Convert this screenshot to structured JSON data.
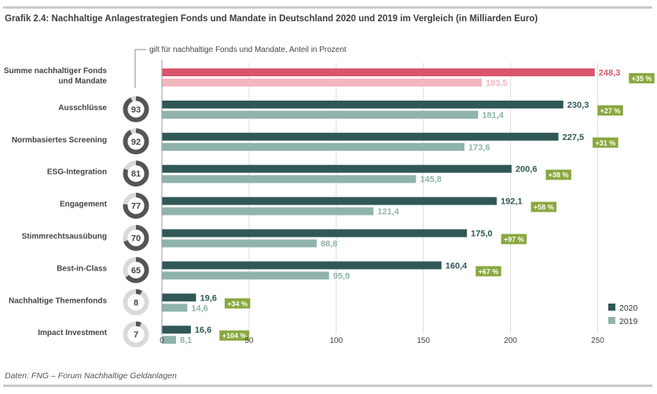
{
  "title": "Grafik 2.4: Nachhaltige Anlagestrategien Fonds und Mandate in Deutschland 2020 und 2019 im Vergleich (in Milliarden Euro)",
  "source": "Daten: FNG – Forum Nachhaltige Geldanlagen",
  "colors": {
    "series_2020": "#2f5856",
    "series_2019": "#8fb3ab",
    "total_2020": "#d9566b",
    "total_2019": "#f3b7bf",
    "growth_badge": "#8aa83f",
    "donut_fill": "#555555",
    "donut_track": "#d9d9d9"
  },
  "chart_data": {
    "type": "bar",
    "orientation": "horizontal",
    "categories": [
      "Summe nachhaltiger Fonds und Mandate",
      "Ausschlüsse",
      "Normbasiertes Screening",
      "ESG-Integration",
      "Engagement",
      "Stimmrechtsausübung",
      "Best-in-Class",
      "Nachhaltige Themenfonds",
      "Impact Investment"
    ],
    "category_lines": [
      [
        "Summe nachhaltiger Fonds",
        "und Mandate"
      ],
      [
        "Ausschlüsse"
      ],
      [
        "Normbasiertes Screening"
      ],
      [
        "ESG-Integration"
      ],
      [
        "Engagement"
      ],
      [
        "Stimmrechtsausübung"
      ],
      [
        "Best-in-Class"
      ],
      [
        "Nachhaltige Themenfonds"
      ],
      [
        "Impact Investment"
      ]
    ],
    "series": [
      {
        "name": "2020",
        "values": [
          248.3,
          230.3,
          227.5,
          200.6,
          192.1,
          175.0,
          160.4,
          19.6,
          16.6
        ],
        "labels": [
          "248,3",
          "230,3",
          "227,5",
          "200,6",
          "192,1",
          "175,0",
          "160,4",
          "19,6",
          "16,6"
        ]
      },
      {
        "name": "2019",
        "values": [
          183.5,
          181.4,
          173.6,
          145.8,
          121.4,
          88.8,
          95.9,
          14.6,
          8.1
        ],
        "labels": [
          "183,5",
          "181,4",
          "173,6",
          "145,8",
          "121,4",
          "88,8",
          "95,9",
          "14,6",
          "8,1"
        ]
      }
    ],
    "growth_labels": [
      "+35 %",
      "+27 %",
      "+31 %",
      "+38 %",
      "+58 %",
      "+97 %",
      "+67 %",
      "+34 %",
      "+104 %"
    ],
    "share_percent": [
      null,
      93,
      92,
      81,
      77,
      70,
      65,
      8,
      7
    ],
    "share_note": "gilt für nachhaltige Fonds und Mandate, Anteil in Prozent",
    "xlim": [
      0,
      250
    ],
    "xticks": [
      0,
      50,
      100,
      150,
      200,
      250
    ],
    "xtick_labels": [
      "0",
      "50",
      "100",
      "150",
      "200",
      "250"
    ],
    "grid": true,
    "legend_position": "bottom-right"
  }
}
